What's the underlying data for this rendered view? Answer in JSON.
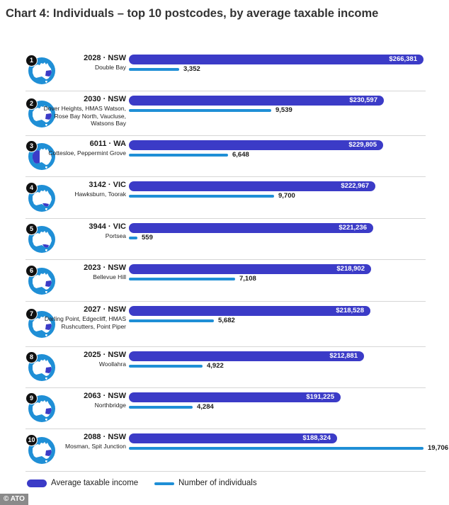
{
  "colors": {
    "income": "#3b3bc7",
    "count": "#1f8fd6",
    "map_circle": "#1f8fd6",
    "map_land": "#ffffff",
    "highlight": "#3b3bc7"
  },
  "source": "© ATO",
  "chart_data": {
    "type": "bar",
    "orientation": "horizontal",
    "title": "Chart 4: Individuals – top 10 postcodes, by average taxable income",
    "categories": [
      "1",
      "2",
      "3",
      "4",
      "5",
      "6",
      "7",
      "8",
      "9",
      "10"
    ],
    "rows": [
      {
        "rank": "1",
        "postcode": "2028 · NSW",
        "suburbs": "Double Bay",
        "state": "NSW",
        "income": 266381,
        "income_label": "$266,381",
        "count": 3352,
        "count_label": "3,352"
      },
      {
        "rank": "2",
        "postcode": "2030 · NSW",
        "suburbs": "Dover Heights, HMAS Watson, Rose Bay North, Vaucluse, Watsons Bay",
        "state": "NSW",
        "income": 230597,
        "income_label": "$230,597",
        "count": 9539,
        "count_label": "9,539"
      },
      {
        "rank": "3",
        "postcode": "6011 · WA",
        "suburbs": "Cottesloe, Peppermint Grove",
        "state": "WA",
        "income": 229805,
        "income_label": "$229,805",
        "count": 6648,
        "count_label": "6,648"
      },
      {
        "rank": "4",
        "postcode": "3142 · VIC",
        "suburbs": "Hawksburn, Toorak",
        "state": "VIC",
        "income": 222967,
        "income_label": "$222,967",
        "count": 9700,
        "count_label": "9,700"
      },
      {
        "rank": "5",
        "postcode": "3944 · VIC",
        "suburbs": "Portsea",
        "state": "VIC",
        "income": 221236,
        "income_label": "$221,236",
        "count": 559,
        "count_label": "559"
      },
      {
        "rank": "6",
        "postcode": "2023 · NSW",
        "suburbs": "Bellevue Hill",
        "state": "NSW",
        "income": 218902,
        "income_label": "$218,902",
        "count": 7108,
        "count_label": "7,108"
      },
      {
        "rank": "7",
        "postcode": "2027 · NSW",
        "suburbs": "Darling Point, Edgecliff, HMAS Rushcutters, Point Piper",
        "state": "NSW",
        "income": 218528,
        "income_label": "$218,528",
        "count": 5682,
        "count_label": "5,682"
      },
      {
        "rank": "8",
        "postcode": "2025 · NSW",
        "suburbs": "Woollahra",
        "state": "NSW",
        "income": 212881,
        "income_label": "$212,881",
        "count": 4922,
        "count_label": "4,922"
      },
      {
        "rank": "9",
        "postcode": "2063 · NSW",
        "suburbs": "Northbridge",
        "state": "NSW",
        "income": 191225,
        "income_label": "$191,225",
        "count": 4284,
        "count_label": "4,284"
      },
      {
        "rank": "10",
        "postcode": "2088 · NSW",
        "suburbs": "Mosman, Spit Junction",
        "state": "NSW",
        "income": 188324,
        "income_label": "$188,324",
        "count": 19706,
        "count_label": "19,706"
      }
    ],
    "series": [
      {
        "name": "Average taxable income",
        "values": [
          266381,
          230597,
          229805,
          222967,
          221236,
          218902,
          218528,
          212881,
          191225,
          188324
        ]
      },
      {
        "name": "Number of individuals",
        "values": [
          3352,
          9539,
          6648,
          9700,
          559,
          7108,
          5682,
          4922,
          4284,
          19706
        ]
      }
    ],
    "legend": [
      "Average taxable income",
      "Number of individuals"
    ],
    "income_max": 266381,
    "count_max": 19706,
    "xlabel": "",
    "ylabel": "",
    "grid": false,
    "legend_position": "bottom-left"
  }
}
